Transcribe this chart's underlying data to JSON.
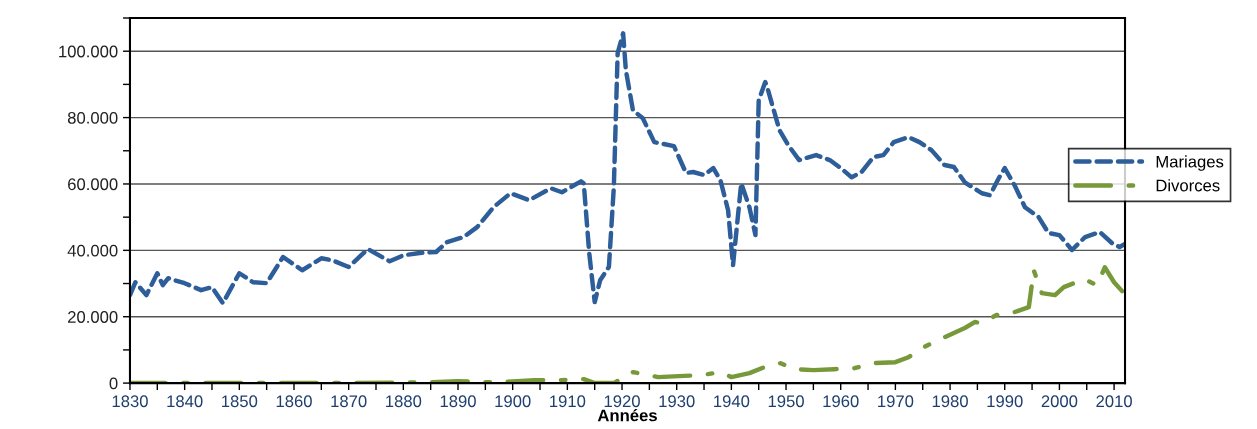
{
  "chart_data": {
    "type": "line",
    "xlabel": "Années",
    "xlim": [
      1830,
      2012
    ],
    "ylim": [
      0,
      110000
    ],
    "xticks": [
      1830,
      {
        "value": 1835,
        "label": null
      },
      1840,
      {
        "value": 1845,
        "label": null
      },
      1850,
      {
        "value": 1855,
        "label": null
      },
      1860,
      {
        "value": 1865,
        "label": null
      },
      1870,
      {
        "value": 1875,
        "label": null
      },
      1880,
      {
        "value": 1885,
        "label": null
      },
      1890,
      {
        "value": 1895,
        "label": null
      },
      1900,
      {
        "value": 1905,
        "label": null
      },
      1910,
      {
        "value": 1915,
        "label": null
      },
      1920,
      {
        "value": 1925,
        "label": null
      },
      1930,
      {
        "value": 1935,
        "label": null
      },
      1940,
      {
        "value": 1945,
        "label": null
      },
      1950,
      {
        "value": 1955,
        "label": null
      },
      1960,
      {
        "value": 1965,
        "label": null
      },
      1970,
      {
        "value": 1975,
        "label": null
      },
      1980,
      {
        "value": 1985,
        "label": null
      },
      1990,
      {
        "value": 1995,
        "label": null
      },
      2000,
      {
        "value": 2005,
        "label": null
      },
      2010
    ],
    "yticks": [
      0,
      {
        "value": 10000,
        "label": null
      },
      {
        "value": 20000,
        "label": "20.000"
      },
      {
        "value": 30000,
        "label": null
      },
      {
        "value": 40000,
        "label": "40.000"
      },
      {
        "value": 50000,
        "label": null
      },
      {
        "value": 60000,
        "label": "60.000"
      },
      {
        "value": 70000,
        "label": null
      },
      {
        "value": 80000,
        "label": "80.000"
      },
      {
        "value": 90000,
        "label": null
      },
      {
        "value": 100000,
        "label": "100.000"
      },
      {
        "value": 110000,
        "label": null
      }
    ],
    "grid": "y",
    "legend": "right",
    "series": [
      {
        "name": "Mariages",
        "color": "#2e5e99",
        "line_style": "dashed",
        "x": [
          1830,
          1831,
          1833,
          1835,
          1836,
          1837,
          1840,
          1843,
          1845,
          1847,
          1850,
          1852.5,
          1855,
          1858,
          1861.5,
          1865,
          1867,
          1870,
          1873.5,
          1877.5,
          1880,
          1883,
          1886,
          1888,
          1891,
          1893.5,
          1896.5,
          1899.6,
          1903,
          1907,
          1909,
          1912.5,
          1913,
          1914,
          1915,
          1916,
          1917.6,
          1918.5,
          1919.2,
          1920.2,
          1920.7,
          1922,
          1923.8,
          1925.9,
          1929.5,
          1931.7,
          1933,
          1935,
          1936.7,
          1938,
          1939.4,
          1940.3,
          1941.8,
          1943.3,
          1944.4,
          1945,
          1946.2,
          1946.7,
          1948.8,
          1950.4,
          1952.4,
          1955.5,
          1958,
          1960,
          1962,
          1963.8,
          1966,
          1967.8,
          1969.7,
          1972.4,
          1974.4,
          1976.6,
          1979,
          1980.7,
          1982.7,
          1985.8,
          1987.3,
          1988.9,
          1990,
          1991.8,
          1993.7,
          1996.2,
          1998,
          2000,
          2002.3,
          2004.7,
          2007.4,
          2009.6,
          2011,
          2012
        ],
        "values": [
          26500,
          30400,
          26500,
          33100,
          29500,
          31600,
          30100,
          28000,
          28900,
          24100,
          33100,
          30400,
          30100,
          38000,
          34000,
          37600,
          37000,
          35000,
          40400,
          36700,
          38500,
          39200,
          39500,
          42500,
          44000,
          47000,
          53000,
          57200,
          55100,
          58700,
          57500,
          60800,
          60200,
          39200,
          24400,
          31000,
          35000,
          59000,
          99400,
          105400,
          94300,
          82200,
          79800,
          72600,
          71400,
          63300,
          63600,
          62700,
          64800,
          61100,
          52100,
          35500,
          60200,
          53000,
          44600,
          85200,
          90700,
          88300,
          76200,
          71700,
          67200,
          68700,
          67200,
          64800,
          62000,
          63600,
          68100,
          68700,
          72600,
          74100,
          72600,
          70200,
          65700,
          65100,
          60500,
          57200,
          56600,
          61700,
          64800,
          59600,
          53000,
          50000,
          45200,
          44600,
          40100,
          44000,
          45500,
          42200,
          41000,
          41900
        ]
      },
      {
        "name": "Divorces",
        "color": "#77993a",
        "line_style": "dashdot",
        "x": [
          1830,
          1850,
          1870,
          1884,
          1890,
          1895,
          1898,
          1904,
          1909,
          1913,
          1915,
          1918.5,
          1922,
          1923,
          1926.6,
          1930.4,
          1934.5,
          1938,
          1940,
          1943.3,
          1946,
          1949,
          1951.5,
          1955,
          1958.8,
          1962.5,
          1966,
          1970,
          1972.4,
          1974.8,
          1977.9,
          1980.7,
          1982.7,
          1984.5,
          1985.8,
          1988.5,
          1991.8,
          1994.4,
          1995,
          1995.3,
          1996.8,
          1999.2,
          2000.8,
          2004.5,
          2006.9,
          2008.3,
          2010,
          2011.8
        ],
        "values": [
          0,
          0,
          0,
          200,
          600,
          300,
          300,
          900,
          900,
          1200,
          0,
          0,
          3300,
          3000,
          1800,
          2100,
          2400,
          3300,
          1800,
          3000,
          4800,
          6000,
          4200,
          3900,
          4200,
          4500,
          6000,
          6300,
          7800,
          10500,
          13000,
          15100,
          16600,
          18400,
          18100,
          20500,
          21400,
          22900,
          30100,
          34000,
          27100,
          26500,
          28900,
          31300,
          29500,
          34900,
          30400,
          27100
        ]
      }
    ]
  }
}
